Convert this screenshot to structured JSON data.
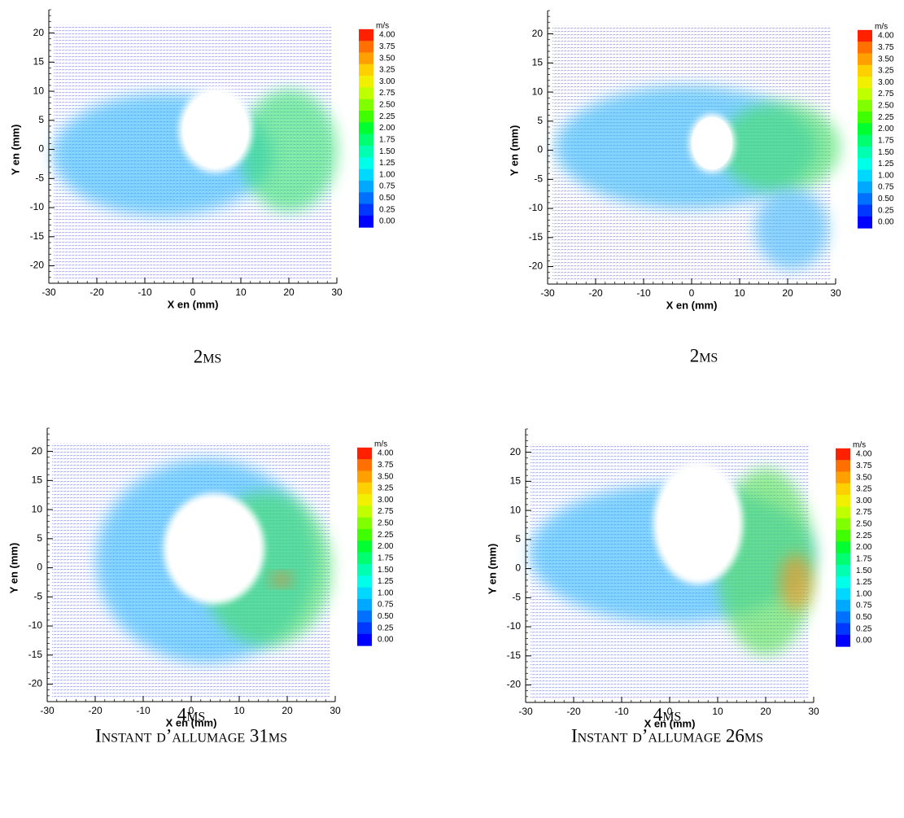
{
  "chart_data": [
    {
      "type": "quiver",
      "xlabel": "X en (mm)",
      "ylabel": "Y en (mm)",
      "xlim": [
        -30,
        30
      ],
      "ylim": [
        -23,
        24
      ],
      "xticks": [
        -30,
        -20,
        -10,
        0,
        10,
        20,
        30
      ],
      "yticks": [
        -20,
        -15,
        -10,
        -5,
        0,
        5,
        10,
        15,
        20
      ],
      "colorbar": {
        "unit": "m/s",
        "ticks": [
          {
            "value": 4,
            "label": "4.00"
          },
          {
            "value": 3.75,
            "label": "3.75"
          },
          {
            "value": 3.5,
            "label": "3.50"
          },
          {
            "value": 3.25,
            "label": "3.25"
          },
          {
            "value": 3,
            "label": "3.00"
          },
          {
            "value": 2.75,
            "label": "2.75"
          },
          {
            "value": 2.5,
            "label": "2.50"
          },
          {
            "value": 2.25,
            "label": "2.25"
          },
          {
            "value": 2,
            "label": "2.00"
          },
          {
            "value": 1.75,
            "label": "1.75"
          },
          {
            "value": 1.5,
            "label": "1.50"
          },
          {
            "value": 1.25,
            "label": "1.25"
          },
          {
            "value": 1,
            "label": "1.00"
          },
          {
            "value": 0.75,
            "label": "0.75"
          },
          {
            "value": 0.5,
            "label": "0.50"
          },
          {
            "value": 0.25,
            "label": "0.25"
          },
          {
            "value": 0,
            "label": "0.00"
          }
        ],
        "colors": [
          "#ff2000",
          "#ff7000",
          "#ffa000",
          "#ffd000",
          "#f0f000",
          "#c0ff00",
          "#80ff00",
          "#40ff00",
          "#00ff30",
          "#00ff70",
          "#00ffb0",
          "#00ffe8",
          "#00d8ff",
          "#00a8ff",
          "#0070ff",
          "#0038ff",
          "#0000ff"
        ]
      },
      "caption": [
        "2ms"
      ]
    },
    {
      "type": "quiver",
      "xlabel": "X en (mm)",
      "ylabel": "Y en (mm)",
      "xlim": [
        -30,
        30
      ],
      "ylim": [
        -23,
        24
      ],
      "xticks": [
        -30,
        -20,
        -10,
        0,
        10,
        20,
        30
      ],
      "yticks": [
        -20,
        -15,
        -10,
        -5,
        0,
        5,
        10,
        15,
        20
      ],
      "colorbar": {
        "unit": "m/s",
        "ticks": [
          {
            "value": 4,
            "label": "4.00"
          },
          {
            "value": 3.75,
            "label": "3.75"
          },
          {
            "value": 3.5,
            "label": "3.50"
          },
          {
            "value": 3.25,
            "label": "3.25"
          },
          {
            "value": 3,
            "label": "3.00"
          },
          {
            "value": 2.75,
            "label": "2.75"
          },
          {
            "value": 2.5,
            "label": "2.50"
          },
          {
            "value": 2.25,
            "label": "2.25"
          },
          {
            "value": 2,
            "label": "2.00"
          },
          {
            "value": 1.75,
            "label": "1.75"
          },
          {
            "value": 1.5,
            "label": "1.50"
          },
          {
            "value": 1.25,
            "label": "1.25"
          },
          {
            "value": 1,
            "label": "1.00"
          },
          {
            "value": 0.75,
            "label": "0.75"
          },
          {
            "value": 0.5,
            "label": "0.50"
          },
          {
            "value": 0.25,
            "label": "0.25"
          },
          {
            "value": 0,
            "label": "0.00"
          }
        ],
        "colors": [
          "#ff2000",
          "#ff7000",
          "#ffa000",
          "#ffd000",
          "#f0f000",
          "#c0ff00",
          "#80ff00",
          "#40ff00",
          "#00ff30",
          "#00ff70",
          "#00ffb0",
          "#00ffe8",
          "#00d8ff",
          "#00a8ff",
          "#0070ff",
          "#0038ff",
          "#0000ff"
        ]
      },
      "caption": [
        "2ms"
      ]
    },
    {
      "type": "quiver",
      "xlabel": "X en (mm)",
      "ylabel": "Y en (mm)",
      "xlim": [
        -30,
        30
      ],
      "ylim": [
        -23,
        24
      ],
      "xticks": [
        -30,
        -20,
        -10,
        0,
        10,
        20,
        30
      ],
      "yticks": [
        -20,
        -15,
        -10,
        -5,
        0,
        5,
        10,
        15,
        20
      ],
      "colorbar": {
        "unit": "m/s",
        "ticks": [
          {
            "value": 4,
            "label": "4.00"
          },
          {
            "value": 3.75,
            "label": "3.75"
          },
          {
            "value": 3.5,
            "label": "3.50"
          },
          {
            "value": 3.25,
            "label": "3.25"
          },
          {
            "value": 3,
            "label": "3.00"
          },
          {
            "value": 2.75,
            "label": "2.75"
          },
          {
            "value": 2.5,
            "label": "2.50"
          },
          {
            "value": 2.25,
            "label": "2.25"
          },
          {
            "value": 2,
            "label": "2.00"
          },
          {
            "value": 1.75,
            "label": "1.75"
          },
          {
            "value": 1.5,
            "label": "1.50"
          },
          {
            "value": 1.25,
            "label": "1.25"
          },
          {
            "value": 1,
            "label": "1.00"
          },
          {
            "value": 0.75,
            "label": "0.75"
          },
          {
            "value": 0.5,
            "label": "0.50"
          },
          {
            "value": 0.25,
            "label": "0.25"
          },
          {
            "value": 0,
            "label": "0.00"
          }
        ],
        "colors": [
          "#ff2000",
          "#ff7000",
          "#ffa000",
          "#ffd000",
          "#f0f000",
          "#c0ff00",
          "#80ff00",
          "#40ff00",
          "#00ff30",
          "#00ff70",
          "#00ffb0",
          "#00ffe8",
          "#00d8ff",
          "#00a8ff",
          "#0070ff",
          "#0038ff",
          "#0000ff"
        ]
      },
      "caption": [
        "4ms",
        "Instant d’allumage 31ms"
      ]
    },
    {
      "type": "quiver",
      "xlabel": "X en (mm)",
      "ylabel": "Y en (mm)",
      "xlim": [
        -30,
        30
      ],
      "ylim": [
        -23,
        24
      ],
      "xticks": [
        -30,
        -20,
        -10,
        0,
        10,
        20,
        30
      ],
      "yticks": [
        -20,
        -15,
        -10,
        -5,
        0,
        5,
        10,
        15,
        20
      ],
      "colorbar": {
        "unit": "m/s",
        "ticks": [
          {
            "value": 4,
            "label": "4.00"
          },
          {
            "value": 3.75,
            "label": "3.75"
          },
          {
            "value": 3.5,
            "label": "3.50"
          },
          {
            "value": 3.25,
            "label": "3.25"
          },
          {
            "value": 3,
            "label": "3.00"
          },
          {
            "value": 2.75,
            "label": "2.75"
          },
          {
            "value": 2.5,
            "label": "2.50"
          },
          {
            "value": 2.25,
            "label": "2.25"
          },
          {
            "value": 2,
            "label": "2.00"
          },
          {
            "value": 1.75,
            "label": "1.75"
          },
          {
            "value": 1.5,
            "label": "1.50"
          },
          {
            "value": 1.25,
            "label": "1.25"
          },
          {
            "value": 1,
            "label": "1.00"
          },
          {
            "value": 0.75,
            "label": "0.75"
          },
          {
            "value": 0.5,
            "label": "0.50"
          },
          {
            "value": 0.25,
            "label": "0.25"
          },
          {
            "value": 0,
            "label": "0.00"
          }
        ],
        "colors": [
          "#ff2000",
          "#ff7000",
          "#ffa000",
          "#ffd000",
          "#f0f000",
          "#c0ff00",
          "#80ff00",
          "#40ff00",
          "#00ff30",
          "#00ff70",
          "#00ffb0",
          "#00ffe8",
          "#00d8ff",
          "#00a8ff",
          "#0070ff",
          "#0038ff",
          "#0000ff"
        ]
      },
      "caption": [
        "4ms",
        "Instant d’allumage 26ms"
      ]
    }
  ]
}
